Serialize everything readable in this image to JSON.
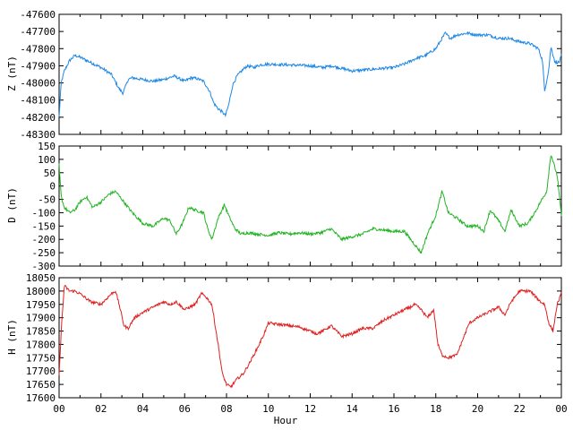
{
  "chart_data": [
    {
      "type": "line",
      "ylabel": "Z (nT)",
      "xlabel": "",
      "ylim": [
        -48300,
        -47600
      ],
      "yticks": [
        -48300,
        -48200,
        -48100,
        -48000,
        -47900,
        -47800,
        -47700,
        -47600
      ],
      "xlim": [
        0,
        24
      ],
      "grid": false,
      "color": "#1e88e5",
      "series": [
        {
          "x": [
            0,
            0.1,
            0.25,
            0.5,
            0.75,
            1.0,
            1.5,
            2.0,
            2.5,
            2.85,
            3.05,
            3.3,
            3.5,
            4.0,
            4.5,
            5.0,
            5.5,
            6.0,
            6.3,
            6.6,
            6.9,
            7.2,
            7.4,
            7.6,
            7.8,
            7.95,
            8.1,
            8.3,
            8.5,
            8.8,
            9.0,
            9.3,
            9.6,
            10.0,
            11.0,
            12.0,
            12.6,
            13.0,
            14.0,
            15.0,
            16.0,
            16.5,
            17.0,
            17.5,
            18.0,
            18.2,
            18.45,
            18.7,
            19.0,
            19.5,
            20.0,
            20.5,
            21.0,
            21.5,
            22.0,
            22.5,
            22.9,
            23.1,
            23.2,
            23.4,
            23.5,
            23.7,
            23.9,
            24.0
          ],
          "values": [
            -48200,
            -48000,
            -47930,
            -47870,
            -47840,
            -47850,
            -47880,
            -47910,
            -47950,
            -48030,
            -48060,
            -47980,
            -47970,
            -47980,
            -47990,
            -47980,
            -47960,
            -47990,
            -47970,
            -47975,
            -47990,
            -48050,
            -48120,
            -48150,
            -48170,
            -48190,
            -48130,
            -48010,
            -47960,
            -47920,
            -47900,
            -47910,
            -47895,
            -47890,
            -47895,
            -47900,
            -47910,
            -47900,
            -47930,
            -47920,
            -47910,
            -47890,
            -47860,
            -47840,
            -47800,
            -47760,
            -47710,
            -47740,
            -47720,
            -47710,
            -47720,
            -47720,
            -47740,
            -47740,
            -47760,
            -47770,
            -47800,
            -47870,
            -48050,
            -47920,
            -47790,
            -47880,
            -47880,
            -47840
          ]
        }
      ]
    },
    {
      "type": "line",
      "ylabel": "D (nT)",
      "xlabel": "",
      "ylim": [
        -300,
        150
      ],
      "yticks": [
        -300,
        -250,
        -200,
        -150,
        -100,
        -50,
        0,
        50,
        100,
        150
      ],
      "xlim": [
        0,
        24
      ],
      "grid": false,
      "color": "#22b422",
      "series": [
        {
          "x": [
            0,
            0.1,
            0.25,
            0.5,
            0.75,
            1.0,
            1.3,
            1.6,
            2.0,
            2.4,
            2.7,
            3.0,
            3.5,
            4.0,
            4.5,
            5.0,
            5.3,
            5.6,
            5.9,
            6.2,
            6.5,
            6.9,
            7.1,
            7.3,
            7.6,
            7.9,
            8.1,
            8.4,
            8.7,
            9.0,
            9.5,
            10.0,
            10.5,
            11.0,
            11.5,
            12.0,
            12.5,
            13.0,
            13.5,
            14.0,
            14.5,
            15.0,
            15.5,
            16.0,
            16.5,
            17.0,
            17.3,
            17.6,
            18.0,
            18.3,
            18.6,
            19.0,
            19.5,
            20.0,
            20.3,
            20.6,
            21.0,
            21.3,
            21.6,
            22.0,
            22.4,
            22.8,
            23.0,
            23.3,
            23.5,
            23.8,
            24.0
          ],
          "values": [
            80,
            -40,
            -80,
            -100,
            -90,
            -60,
            -40,
            -80,
            -60,
            -30,
            -20,
            -50,
            -100,
            -140,
            -150,
            -120,
            -130,
            -180,
            -140,
            -80,
            -90,
            -100,
            -160,
            -200,
            -120,
            -70,
            -110,
            -160,
            -180,
            -175,
            -180,
            -185,
            -175,
            -180,
            -175,
            -180,
            -175,
            -160,
            -200,
            -190,
            -180,
            -160,
            -165,
            -170,
            -170,
            -220,
            -250,
            -180,
            -110,
            -20,
            -100,
            -120,
            -150,
            -150,
            -170,
            -90,
            -130,
            -170,
            -90,
            -150,
            -140,
            -90,
            -60,
            -20,
            120,
            40,
            -110
          ]
        }
      ]
    },
    {
      "type": "line",
      "ylabel": "H (nT)",
      "xlabel": "Hour",
      "ylim": [
        17600,
        18050
      ],
      "yticks": [
        17600,
        17650,
        17700,
        17750,
        17800,
        17850,
        17900,
        17950,
        18000,
        18050
      ],
      "xlim": [
        0,
        24
      ],
      "xticks": [
        "00",
        "02",
        "04",
        "06",
        "08",
        "10",
        "12",
        "14",
        "16",
        "18",
        "20",
        "22",
        "00"
      ],
      "grid": false,
      "color": "#e02020",
      "series": [
        {
          "x": [
            0,
            0.1,
            0.25,
            0.5,
            0.75,
            1.0,
            1.5,
            2.0,
            2.5,
            2.7,
            2.9,
            3.1,
            3.3,
            3.6,
            4.0,
            4.5,
            5.0,
            5.3,
            5.6,
            6.0,
            6.5,
            6.8,
            7.0,
            7.3,
            7.6,
            7.8,
            8.0,
            8.2,
            8.5,
            8.8,
            9.1,
            9.5,
            9.8,
            10.0,
            10.5,
            11.0,
            11.5,
            12.0,
            12.3,
            12.6,
            13.0,
            13.5,
            14.0,
            14.5,
            15.0,
            15.5,
            16.0,
            16.5,
            16.8,
            17.0,
            17.3,
            17.6,
            17.9,
            18.1,
            18.3,
            18.6,
            19.0,
            19.3,
            19.6,
            20.0,
            20.5,
            21.0,
            21.3,
            21.6,
            22.0,
            22.5,
            23.0,
            23.2,
            23.4,
            23.6,
            23.8,
            24.0
          ],
          "values": [
            17680,
            17850,
            18020,
            18000,
            18000,
            17990,
            17960,
            17950,
            17990,
            18000,
            17940,
            17870,
            17860,
            17900,
            17920,
            17940,
            17960,
            17950,
            17960,
            17930,
            17950,
            17990,
            17980,
            17950,
            17800,
            17690,
            17650,
            17640,
            17670,
            17690,
            17730,
            17790,
            17840,
            17880,
            17875,
            17870,
            17865,
            17850,
            17840,
            17850,
            17870,
            17830,
            17840,
            17860,
            17860,
            17890,
            17910,
            17930,
            17940,
            17950,
            17930,
            17900,
            17930,
            17800,
            17760,
            17750,
            17760,
            17820,
            17880,
            17900,
            17920,
            17940,
            17910,
            17960,
            18000,
            18000,
            17960,
            17950,
            17880,
            17850,
            17950,
            17990
          ]
        }
      ]
    }
  ]
}
